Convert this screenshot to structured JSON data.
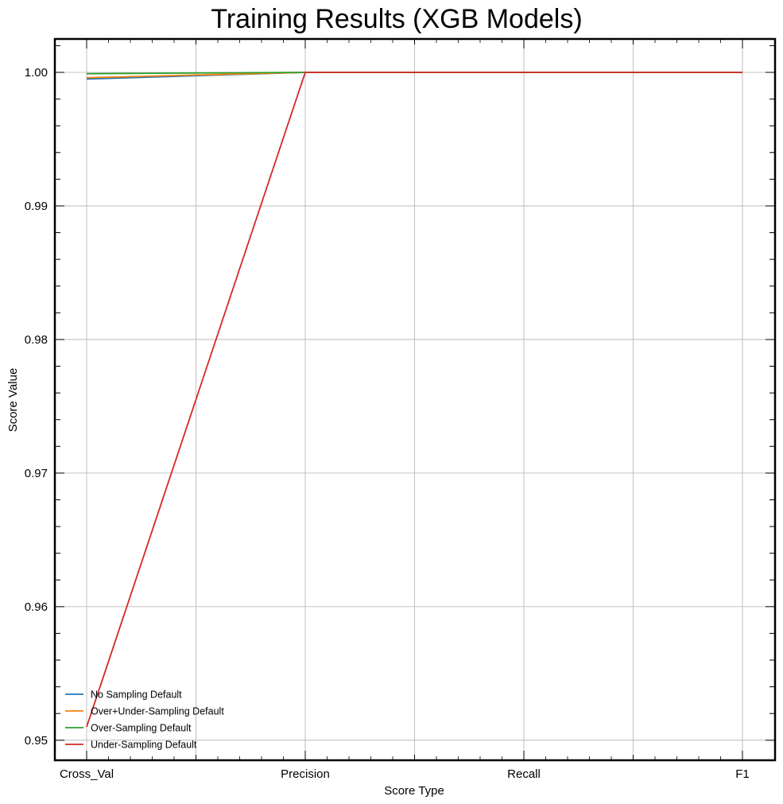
{
  "chart_data": {
    "type": "line",
    "title": "Training Results (XGB Models)",
    "xlabel": "Score Type",
    "ylabel": "Score Value",
    "categories": [
      "Cross_Val",
      "Precision",
      "Recall",
      "F1"
    ],
    "ylim": [
      0.9485,
      1.0025
    ],
    "yticks": [
      0.95,
      0.96,
      0.97,
      0.98,
      0.99,
      1.0
    ],
    "ytick_labels": [
      "0.95",
      "0.96",
      "0.97",
      "0.98",
      "0.99",
      "1.00"
    ],
    "grid": true,
    "legend_position": "lower-left",
    "series": [
      {
        "name": "No Sampling Default",
        "color": "#1f77b4",
        "values": [
          0.9995,
          1.0,
          1.0,
          1.0
        ]
      },
      {
        "name": "Over+Under-Sampling Default",
        "color": "#ff7f0e",
        "values": [
          0.9996,
          1.0,
          1.0,
          1.0
        ]
      },
      {
        "name": "Over-Sampling Default",
        "color": "#2ca02c",
        "values": [
          0.9999,
          1.0,
          1.0,
          1.0
        ]
      },
      {
        "name": "Under-Sampling Default",
        "color": "#d62728",
        "values": [
          0.951,
          1.0,
          1.0,
          1.0
        ]
      }
    ]
  }
}
